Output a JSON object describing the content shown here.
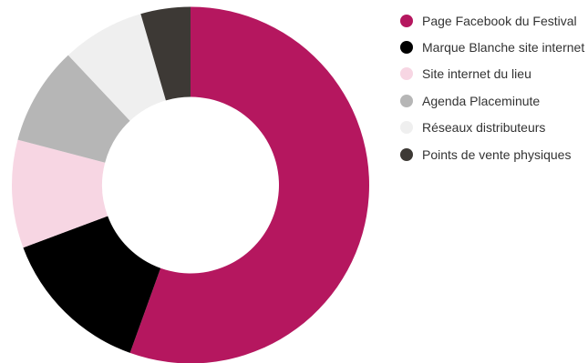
{
  "chart_data": {
    "type": "pie",
    "donut": true,
    "title": "",
    "legend_position": "right",
    "slices": [
      {
        "label": "Page Facebook du Festival",
        "value": 55.5,
        "color": "#b5175f"
      },
      {
        "label": "Marque Blanche site internet",
        "value": 13.8,
        "color": "#000000"
      },
      {
        "label": "Site internet du lieu",
        "value": 9.8,
        "color": "#f7d6e3"
      },
      {
        "label": "Agenda Placeminute",
        "value": 8.9,
        "color": "#b6b6b6"
      },
      {
        "label": "Réseaux distributeurs",
        "value": 7.5,
        "color": "#efefef"
      },
      {
        "label": "Points de vente physiques",
        "value": 4.5,
        "color": "#3d3935"
      }
    ]
  }
}
